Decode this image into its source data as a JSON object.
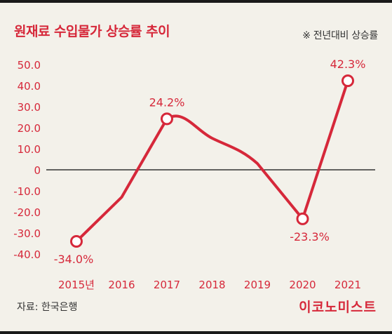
{
  "title": "원재료 수입물가 상승률 추이",
  "note": "※ 전년대비 상승률",
  "source": "자료: 한국은행",
  "brand": "이코노미스트",
  "colors": {
    "accent": "#d6283a",
    "background": "#f3f1ea",
    "text": "#333333"
  },
  "chart_data": {
    "type": "line",
    "title": "원재료 수입물가 상승률 추이",
    "xlabel": "",
    "ylabel": "",
    "categories": [
      "2015년",
      "2016",
      "2017",
      "2018",
      "2019",
      "2020",
      "2021"
    ],
    "x": [
      2015,
      2016,
      2017,
      2018,
      2019,
      2020,
      2021
    ],
    "series": [
      {
        "values": [
          -34.0,
          -13.0,
          24.2,
          15.0,
          3.0,
          -23.3,
          42.3
        ]
      }
    ],
    "markers": [
      {
        "index": 0,
        "label": "-34.0%"
      },
      {
        "index": 2,
        "label": "24.2%"
      },
      {
        "index": 5,
        "label": "-23.3%"
      },
      {
        "index": 6,
        "label": "42.3%"
      }
    ],
    "yticks": [
      "50.0",
      "40.0",
      "30.0",
      "20.0",
      "10.0",
      "0",
      "-10.0",
      "-20.0",
      "-30.0",
      "-40.0"
    ],
    "ytick_values": [
      50,
      40,
      30,
      20,
      10,
      0,
      -10,
      -20,
      -30,
      -40
    ],
    "ylim": [
      -40,
      50
    ],
    "grid": false,
    "zero_line": true
  }
}
